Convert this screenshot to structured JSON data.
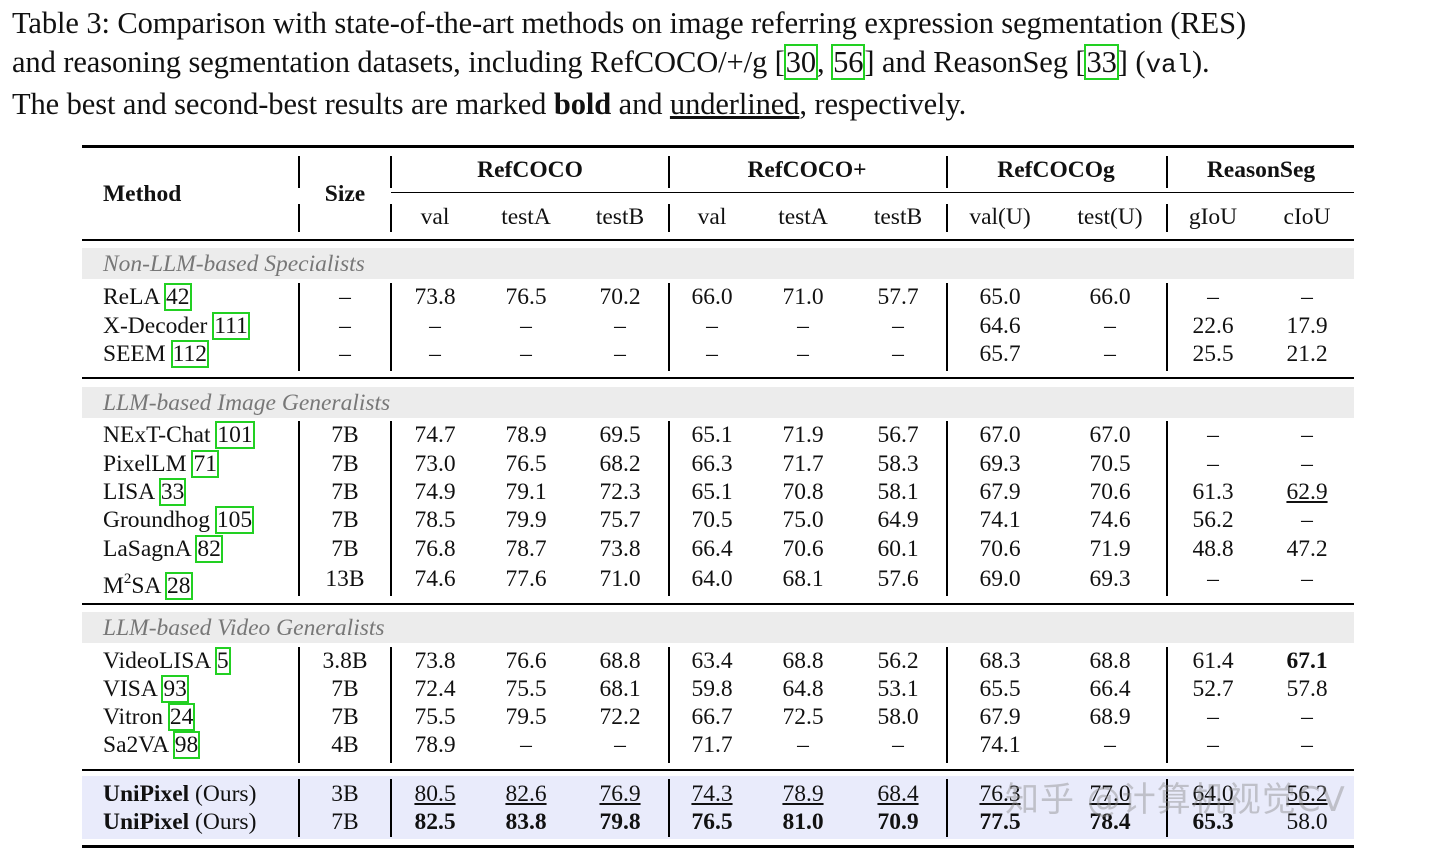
{
  "caption": {
    "prefix": "Table 3: Comparison with state-of-the-art methods on image referring expression segmentation (RES)",
    "line2_a": "and reasoning segmentation datasets, including RefCOCO/+/g [",
    "cite_a": "30",
    "sep": ", ",
    "cite_b": "56",
    "line2_b": "] and ReasonSeg [",
    "cite_c": "33",
    "line2_c": "] (",
    "mono": "val",
    "line2_d": ").",
    "line3_a": "The best and second-best results are marked ",
    "bold_word": "bold",
    "line3_b": " and ",
    "underline_word": "underlined",
    "line3_c": ", respectively."
  },
  "header": {
    "method": "Method",
    "size": "Size",
    "groups": [
      "RefCOCO",
      "RefCOCO+",
      "RefCOCOg",
      "ReasonSeg"
    ],
    "cols": [
      "val",
      "testA",
      "testB",
      "val",
      "testA",
      "testB",
      "val(U)",
      "test(U)",
      "gIoU",
      "cIoU"
    ]
  },
  "sections": [
    {
      "title": "Non-LLM-based Specialists",
      "rows": [
        {
          "name": "ReLA",
          "ref": "42",
          "size": "–",
          "v": [
            "73.8",
            "76.5",
            "70.2",
            "66.0",
            "71.0",
            "57.7",
            "65.0",
            "66.0",
            "–",
            "–"
          ]
        },
        {
          "name": "X-Decoder",
          "ref": "111",
          "size": "–",
          "v": [
            "–",
            "–",
            "–",
            "–",
            "–",
            "–",
            "64.6",
            "–",
            "22.6",
            "17.9"
          ]
        },
        {
          "name": "SEEM",
          "ref": "112",
          "size": "–",
          "v": [
            "–",
            "–",
            "–",
            "–",
            "–",
            "–",
            "65.7",
            "–",
            "25.5",
            "21.2"
          ]
        }
      ]
    },
    {
      "title": "LLM-based Image Generalists",
      "rows": [
        {
          "name": "NExT-Chat",
          "ref": "101",
          "size": "7B",
          "v": [
            "74.7",
            "78.9",
            "69.5",
            "65.1",
            "71.9",
            "56.7",
            "67.0",
            "67.0",
            "–",
            "–"
          ]
        },
        {
          "name": "PixelLM",
          "ref": "71",
          "size": "7B",
          "v": [
            "73.0",
            "76.5",
            "68.2",
            "66.3",
            "71.7",
            "58.3",
            "69.3",
            "70.5",
            "–",
            "–"
          ]
        },
        {
          "name": "LISA",
          "ref": "33",
          "size": "7B",
          "v": [
            "74.9",
            "79.1",
            "72.3",
            "65.1",
            "70.8",
            "58.1",
            "67.9",
            "70.6",
            "61.3",
            "62.9"
          ]
        },
        {
          "name": "Groundhog",
          "ref": "105",
          "size": "7B",
          "v": [
            "78.5",
            "79.9",
            "75.7",
            "70.5",
            "75.0",
            "64.9",
            "74.1",
            "74.6",
            "56.2",
            "–"
          ]
        },
        {
          "name": "LaSagnA",
          "ref": "82",
          "size": "7B",
          "v": [
            "76.8",
            "78.7",
            "73.8",
            "66.4",
            "70.6",
            "60.1",
            "70.6",
            "71.9",
            "48.8",
            "47.2"
          ]
        },
        {
          "name": "M",
          "sup": "2",
          "name2": "SA",
          "ref": "28",
          "size": "13B",
          "v": [
            "74.6",
            "77.6",
            "71.0",
            "64.0",
            "68.1",
            "57.6",
            "69.0",
            "69.3",
            "–",
            "–"
          ]
        }
      ]
    },
    {
      "title": "LLM-based Video Generalists",
      "rows": [
        {
          "name": "VideoLISA",
          "ref": "5",
          "size": "3.8B",
          "v": [
            "73.8",
            "76.6",
            "68.8",
            "63.4",
            "68.8",
            "56.2",
            "68.3",
            "68.8",
            "61.4",
            "67.1"
          ]
        },
        {
          "name": "VISA",
          "ref": "93",
          "size": "7B",
          "v": [
            "72.4",
            "75.5",
            "68.1",
            "59.8",
            "64.8",
            "53.1",
            "65.5",
            "66.4",
            "52.7",
            "57.8"
          ]
        },
        {
          "name": "Vitron",
          "ref": "24",
          "size": "7B",
          "v": [
            "75.5",
            "79.5",
            "72.2",
            "66.7",
            "72.5",
            "58.0",
            "67.9",
            "68.9",
            "–",
            "–"
          ]
        },
        {
          "name": "Sa2VA",
          "ref": "98",
          "size": "4B",
          "v": [
            "78.9",
            "–",
            "–",
            "71.7",
            "–",
            "–",
            "74.1",
            "–",
            "–",
            "–"
          ]
        }
      ]
    }
  ],
  "ours": [
    {
      "name": "UniPixel",
      "suffix": " (Ours)",
      "size": "3B",
      "v": [
        "80.5",
        "82.6",
        "76.9",
        "74.3",
        "78.9",
        "68.4",
        "76.3",
        "77.0",
        "64.0",
        "56.2"
      ]
    },
    {
      "name": "UniPixel",
      "suffix": " (Ours)",
      "size": "7B",
      "v": [
        "82.5",
        "83.8",
        "79.8",
        "76.5",
        "81.0",
        "70.9",
        "77.5",
        "78.4",
        "65.3",
        "58.0"
      ]
    }
  ],
  "watermark": "知乎 @计算机视觉CV",
  "colors": {
    "cite_box": "#22d022",
    "section_band": "#ececec",
    "ours_band": "#e9ebfb",
    "section_text": "#777777"
  }
}
